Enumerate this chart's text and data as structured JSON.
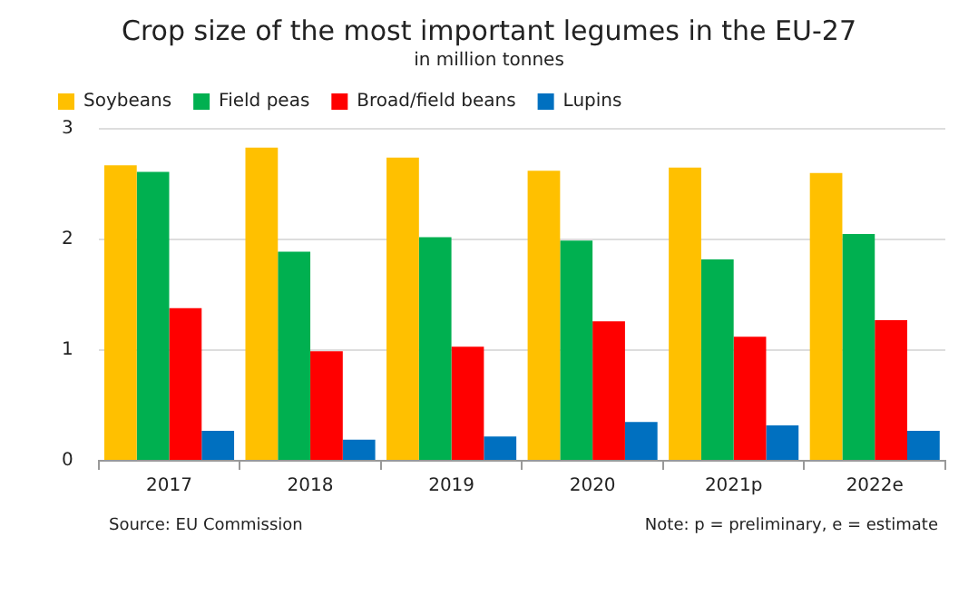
{
  "chart_data": {
    "type": "bar",
    "title": "Crop size of the most important legumes in the EU-27",
    "subtitle": "in million tonnes",
    "categories": [
      "2017",
      "2018",
      "2019",
      "2020",
      "2021p",
      "2022e"
    ],
    "series": [
      {
        "name": "Soybeans",
        "color": "#ffc000",
        "values": [
          2.67,
          2.83,
          2.74,
          2.62,
          2.65,
          2.6
        ]
      },
      {
        "name": "Field peas",
        "color": "#00b050",
        "values": [
          2.61,
          1.89,
          2.02,
          1.99,
          1.82,
          2.05
        ]
      },
      {
        "name": "Broad/field beans",
        "color": "#ff0000",
        "values": [
          1.38,
          0.99,
          1.03,
          1.26,
          1.12,
          1.27
        ]
      },
      {
        "name": "Lupins",
        "color": "#0070c0",
        "values": [
          0.27,
          0.19,
          0.22,
          0.35,
          0.32,
          0.27
        ]
      }
    ],
    "ylim": [
      0,
      3
    ],
    "yticks": [
      0,
      1,
      2,
      3
    ],
    "grid": "y",
    "legend": "top left",
    "annotations": [
      "Source: EU Commission",
      "Note: p = preliminary, e = estimate"
    ]
  }
}
